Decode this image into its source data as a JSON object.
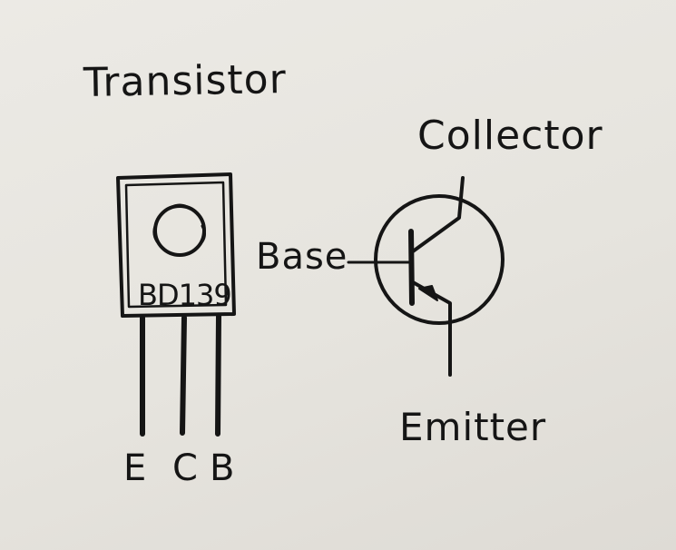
{
  "title": "Transistor",
  "package": {
    "marking": "BD139",
    "pins": [
      "E",
      "C",
      "B"
    ]
  },
  "symbol": {
    "collector_label": "Collector",
    "base_label": "Base",
    "emitter_label": "Emitter"
  },
  "colors": {
    "paper": "#e9e7e2",
    "ink": "#151515"
  }
}
